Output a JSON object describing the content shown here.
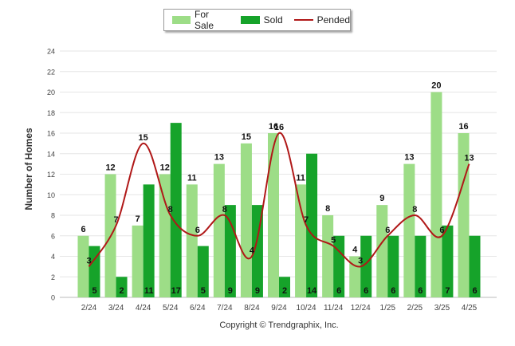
{
  "legend": {
    "for_sale": "For Sale",
    "sold": "Sold",
    "pended": "Pended"
  },
  "colors": {
    "for_sale": "#9ddd87",
    "sold": "#16a32a",
    "pended": "#b01818"
  },
  "ylabel": "Number of Homes",
  "copyright": "Copyright © Trendgraphix, Inc.",
  "chart_data": {
    "type": "bar",
    "categories": [
      "2/24",
      "3/24",
      "4/24",
      "5/24",
      "6/24",
      "7/24",
      "8/24",
      "9/24",
      "10/24",
      "11/24",
      "12/24",
      "1/25",
      "2/25",
      "3/25",
      "4/25"
    ],
    "series": [
      {
        "name": "For Sale",
        "type": "bar",
        "values": [
          6,
          12,
          7,
          12,
          11,
          13,
          15,
          16,
          11,
          8,
          4,
          9,
          13,
          20,
          16
        ]
      },
      {
        "name": "Sold",
        "type": "bar",
        "values": [
          5,
          2,
          11,
          17,
          5,
          9,
          9,
          2,
          14,
          6,
          6,
          6,
          6,
          7,
          6
        ]
      },
      {
        "name": "Pended",
        "type": "line",
        "smooth": true,
        "values": [
          3,
          7,
          15,
          8,
          6,
          8,
          4,
          16,
          7,
          5,
          3,
          6,
          8,
          6,
          13
        ]
      }
    ],
    "ylim": [
      0,
      24
    ],
    "yticks": [
      0,
      2,
      4,
      6,
      8,
      10,
      12,
      14,
      16,
      18,
      20,
      22,
      24
    ],
    "ylabel": "Number of Homes",
    "xlabel": "",
    "grid": true,
    "legend_position": "top-center"
  }
}
